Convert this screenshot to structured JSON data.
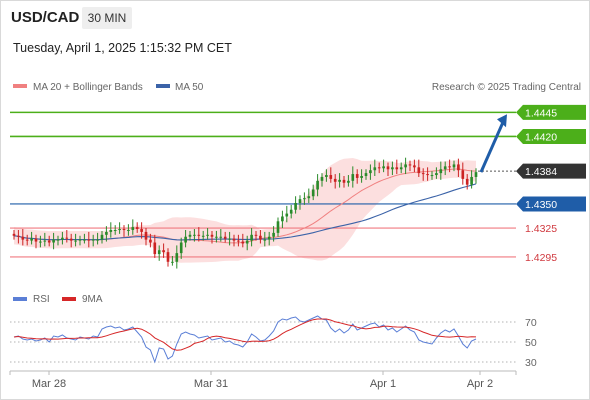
{
  "header": {
    "symbol": "USD/CAD",
    "interval": "30 MIN",
    "datetime": "Tuesday, April 1, 2025 1:15:32 PM CET",
    "credit": "Research © 2025 Trading Central"
  },
  "colors": {
    "bollinger_band": "#f5a3a3",
    "ma20": "#f08080",
    "ma50": "#3b63a8",
    "up_candle": "#2a8a2a",
    "down_candle": "#cc2222",
    "resistance": "#4caf1a",
    "support": "#f07a80",
    "pivot": "#1f5da8",
    "current_price_tag": "#333333",
    "rsi": "#5b7fd6",
    "rsi_ma": "#d62728"
  },
  "chart_data": [
    {
      "type": "candlestick",
      "legend": [
        {
          "label": "MA 20 + Bollinger Bands",
          "color": "#f08080"
        },
        {
          "label": "MA 50",
          "color": "#3b63a8"
        }
      ],
      "x_labels": [
        "Mar 28",
        "Mar 31",
        "Apr 1",
        "Apr 2"
      ],
      "ylim": [
        1.4268,
        1.4462
      ],
      "levels": [
        {
          "label": "1.4445",
          "value": 1.4445,
          "kind": "resistance"
        },
        {
          "label": "1.4420",
          "value": 1.442,
          "kind": "resistance"
        },
        {
          "label": "1.4384",
          "value": 1.4384,
          "kind": "current"
        },
        {
          "label": "1.4350",
          "value": 1.435,
          "kind": "pivot"
        },
        {
          "label": "1.4325",
          "value": 1.4325,
          "kind": "support"
        },
        {
          "label": "1.4295",
          "value": 1.4295,
          "kind": "support"
        }
      ],
      "forecast_arrow": {
        "from": 1.4383,
        "to": 1.444,
        "direction": "up"
      },
      "closes": [
        1.4317,
        1.4316,
        1.4313,
        1.4312,
        1.4314,
        1.4311,
        1.4311,
        1.4312,
        1.431,
        1.4313,
        1.4313,
        1.4315,
        1.4314,
        1.4312,
        1.4312,
        1.4313,
        1.4313,
        1.4312,
        1.4313,
        1.4313,
        1.4318,
        1.4321,
        1.4323,
        1.4323,
        1.4324,
        1.4323,
        1.4323,
        1.4326,
        1.4324,
        1.4321,
        1.4313,
        1.431,
        1.4298,
        1.4302,
        1.43,
        1.429,
        1.429,
        1.4299,
        1.431,
        1.4316,
        1.4318,
        1.4318,
        1.4317,
        1.4317,
        1.4318,
        1.4316,
        1.4316,
        1.4316,
        1.4314,
        1.4314,
        1.4312,
        1.4311,
        1.4309,
        1.4312,
        1.4318,
        1.4317,
        1.4313,
        1.4313,
        1.4316,
        1.432,
        1.4332,
        1.4337,
        1.434,
        1.4344,
        1.4351,
        1.4355,
        1.4356,
        1.4358,
        1.4365,
        1.4374,
        1.4378,
        1.438,
        1.4376,
        1.4373,
        1.4375,
        1.4372,
        1.4374,
        1.4381,
        1.4377,
        1.4379,
        1.4382,
        1.4385,
        1.4388,
        1.4387,
        1.4389,
        1.4386,
        1.4388,
        1.4386,
        1.4388,
        1.4391,
        1.439,
        1.4388,
        1.4382,
        1.4381,
        1.438,
        1.438,
        1.4382,
        1.4386,
        1.4389,
        1.4388,
        1.4391,
        1.4385,
        1.4376,
        1.437,
        1.4378,
        1.4383
      ],
      "ma20_end": 1.438,
      "ma50_end": 1.4374
    },
    {
      "type": "line",
      "title": "RSI",
      "legend": [
        {
          "label": "RSI",
          "color": "#5b7fd6"
        },
        {
          "label": "9MA",
          "color": "#d62728"
        }
      ],
      "yticks": [
        70,
        50,
        30
      ],
      "ylim": [
        25,
        80
      ],
      "rsi": [
        55,
        56,
        53,
        52,
        53,
        51,
        52,
        54,
        50,
        56,
        55,
        57,
        54,
        53,
        52,
        55,
        54,
        53,
        56,
        55,
        63,
        65,
        66,
        64,
        65,
        62,
        63,
        65,
        60,
        55,
        45,
        42,
        30,
        44,
        43,
        33,
        36,
        48,
        58,
        60,
        58,
        57,
        54,
        55,
        56,
        52,
        53,
        54,
        50,
        51,
        48,
        47,
        45,
        50,
        58,
        55,
        51,
        52,
        56,
        61,
        70,
        73,
        72,
        74,
        75,
        71,
        70,
        72,
        74,
        76,
        73,
        72,
        64,
        60,
        63,
        59,
        62,
        68,
        62,
        64,
        66,
        68,
        69,
        65,
        67,
        62,
        64,
        60,
        63,
        66,
        62,
        60,
        52,
        50,
        49,
        48,
        54,
        59,
        62,
        60,
        63,
        56,
        48,
        44,
        51,
        53
      ]
    }
  ]
}
